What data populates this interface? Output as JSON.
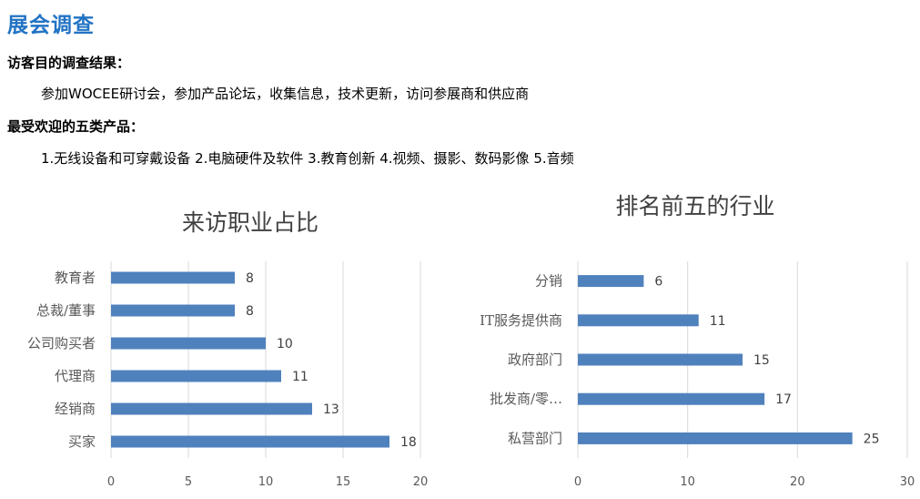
{
  "page": {
    "title": "展会调查",
    "visitor_purpose_heading": "访客目的调查结果：",
    "visitor_purpose_text": "参加WOCEE研讨会，参加产品论坛，收集信息，技术更新，访问参展商和供应商",
    "top_products_heading": "最受欢迎的五类产品：",
    "top_products_text": "1.无线设备和可穿戴设备  2.电脑硬件及软件  3.教育创新  4.视频、摄影、数码影像  5.音频"
  },
  "chart_data": [
    {
      "type": "bar",
      "orientation": "horizontal",
      "title": "来访职业占比",
      "categories": [
        "教育者",
        "总裁/董事",
        "公司购买者",
        "代理商",
        "经销商",
        "买家"
      ],
      "values": [
        8,
        8,
        10,
        11,
        13,
        18
      ],
      "xlim": [
        0,
        20
      ],
      "xticks": [
        "0",
        "5",
        "10",
        "15",
        "20"
      ],
      "grid": true,
      "bar_color": "#4f81bd"
    },
    {
      "type": "bar",
      "orientation": "horizontal",
      "title": "排名前五的行业",
      "categories": [
        "分销",
        "IT服务提供商",
        "政府部门",
        "批发商/零…",
        "私营部门"
      ],
      "values": [
        6,
        11,
        15,
        17,
        25
      ],
      "xlim": [
        0,
        30
      ],
      "xticks": [
        "0",
        "10",
        "20",
        "30"
      ],
      "grid": true,
      "bar_color": "#4f81bd"
    }
  ]
}
